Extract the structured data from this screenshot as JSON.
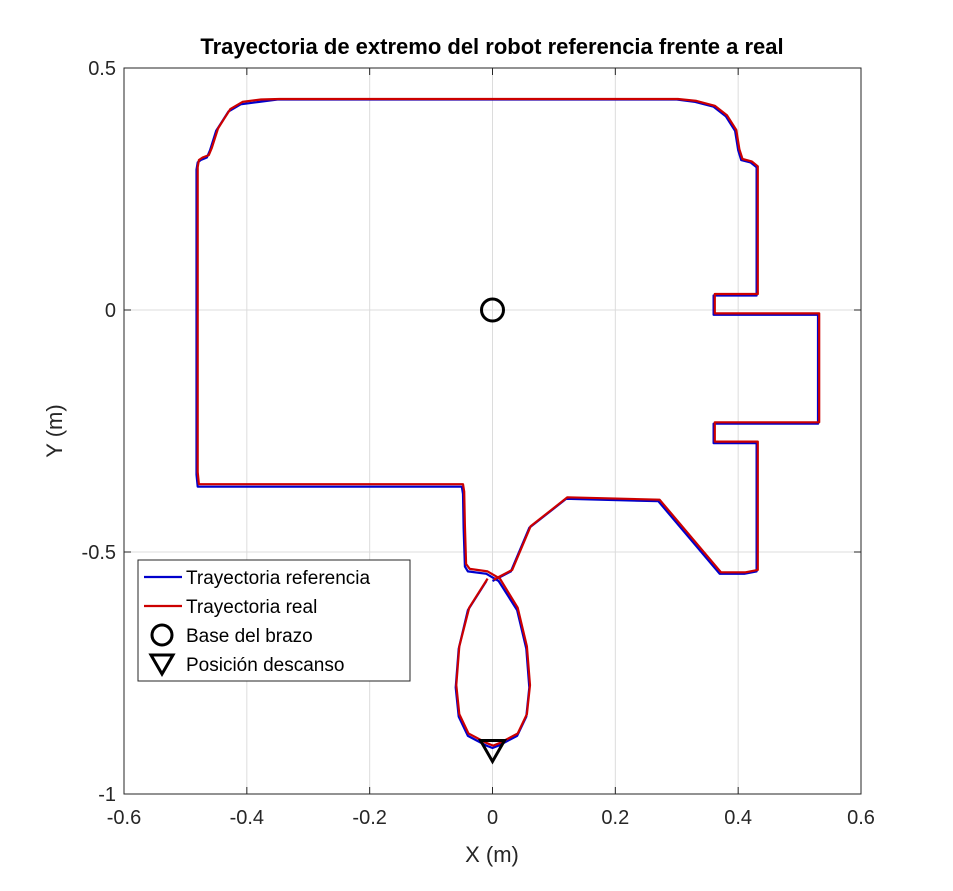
{
  "chart_data": {
    "type": "line",
    "title": "Trayectoria de extremo del robot referencia frente a real",
    "xlabel": "X (m)",
    "ylabel": "Y (m)",
    "xlim": [
      -0.6,
      0.6
    ],
    "ylim": [
      -1,
      0.5
    ],
    "xticks": [
      -0.6,
      -0.4,
      -0.2,
      0,
      0.2,
      0.4,
      0.6
    ],
    "xtick_labels": [
      "-0.6",
      "-0.4",
      "-0.2",
      "0",
      "0.2",
      "0.4",
      "0.6"
    ],
    "yticks": [
      -1,
      -0.5,
      0,
      0.5
    ],
    "ytick_labels": [
      "-1",
      "-0.5",
      "0",
      "0.5"
    ],
    "grid": true,
    "legend_position": "bottom-left",
    "series": [
      {
        "name": "Trayectoria referencia",
        "color": "#0000cc",
        "marker": "line",
        "x": [
          -0.01,
          -0.04,
          -0.055,
          -0.06,
          -0.055,
          -0.04,
          -0.01,
          0.0,
          0.01,
          0.04,
          0.055,
          0.06,
          0.055,
          0.04,
          0.01,
          -0.01,
          -0.04,
          -0.045,
          -0.047,
          -0.048,
          -0.05,
          -0.48,
          -0.482,
          -0.482,
          -0.48,
          -0.475,
          -0.465,
          -0.46,
          -0.45,
          -0.44,
          -0.43,
          -0.41,
          -0.38,
          -0.35,
          -0.34,
          0.3,
          0.33,
          0.36,
          0.38,
          0.395,
          0.4,
          0.405,
          0.42,
          0.43,
          0.43,
          0.43,
          0.36,
          0.36,
          0.53,
          0.53,
          0.36,
          0.36,
          0.43,
          0.43,
          0.41,
          0.37,
          0.27,
          0.12,
          0.06,
          0.03,
          0.0
        ],
        "y": [
          -0.56,
          -0.62,
          -0.7,
          -0.78,
          -0.84,
          -0.88,
          -0.9,
          -0.905,
          -0.9,
          -0.88,
          -0.84,
          -0.78,
          -0.7,
          -0.62,
          -0.56,
          -0.545,
          -0.54,
          -0.53,
          -0.45,
          -0.38,
          -0.365,
          -0.365,
          -0.34,
          0.29,
          0.305,
          0.31,
          0.315,
          0.33,
          0.37,
          0.39,
          0.41,
          0.425,
          0.43,
          0.435,
          0.435,
          0.435,
          0.43,
          0.42,
          0.4,
          0.37,
          0.33,
          0.31,
          0.305,
          0.295,
          0.03,
          0.03,
          0.03,
          -0.01,
          -0.01,
          -0.235,
          -0.235,
          -0.275,
          -0.275,
          -0.54,
          -0.545,
          -0.545,
          -0.395,
          -0.39,
          -0.45,
          -0.54,
          -0.56
        ]
      },
      {
        "name": "Trayectoria real",
        "color": "#cc0000",
        "marker": "line",
        "x": [
          -0.008,
          -0.038,
          -0.054,
          -0.059,
          -0.054,
          -0.039,
          -0.009,
          0.001,
          0.011,
          0.041,
          0.056,
          0.061,
          0.056,
          0.041,
          0.012,
          -0.008,
          -0.037,
          -0.043,
          -0.045,
          -0.046,
          -0.048,
          -0.478,
          -0.48,
          -0.48,
          -0.478,
          -0.472,
          -0.462,
          -0.457,
          -0.447,
          -0.437,
          -0.427,
          -0.407,
          -0.377,
          -0.347,
          -0.337,
          0.302,
          0.332,
          0.362,
          0.382,
          0.397,
          0.402,
          0.407,
          0.422,
          0.432,
          0.432,
          0.432,
          0.362,
          0.362,
          0.532,
          0.532,
          0.362,
          0.362,
          0.432,
          0.432,
          0.412,
          0.372,
          0.272,
          0.122,
          0.062,
          0.032,
          0.002
        ],
        "y": [
          -0.555,
          -0.615,
          -0.695,
          -0.775,
          -0.835,
          -0.875,
          -0.895,
          -0.9,
          -0.895,
          -0.875,
          -0.835,
          -0.775,
          -0.695,
          -0.615,
          -0.555,
          -0.54,
          -0.535,
          -0.525,
          -0.445,
          -0.375,
          -0.36,
          -0.36,
          -0.335,
          0.295,
          0.31,
          0.315,
          0.32,
          0.335,
          0.375,
          0.395,
          0.415,
          0.43,
          0.435,
          0.436,
          0.436,
          0.436,
          0.432,
          0.422,
          0.402,
          0.372,
          0.332,
          0.312,
          0.307,
          0.297,
          0.033,
          0.033,
          0.033,
          -0.007,
          -0.007,
          -0.232,
          -0.232,
          -0.272,
          -0.272,
          -0.537,
          -0.542,
          -0.542,
          -0.392,
          -0.387,
          -0.447,
          -0.537,
          -0.557
        ]
      },
      {
        "name": "Base del brazo",
        "color": "#000000",
        "marker": "circle",
        "x": [
          0
        ],
        "y": [
          0
        ]
      },
      {
        "name": "Posición descanso",
        "color": "#000000",
        "marker": "triangle-down",
        "x": [
          0
        ],
        "y": [
          -0.91
        ]
      }
    ]
  }
}
